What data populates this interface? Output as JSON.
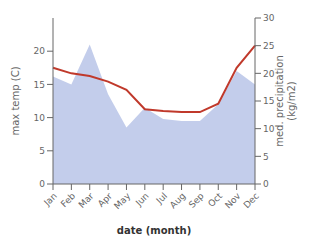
{
  "chart_data": {
    "type": "line",
    "categories": [
      "Jan",
      "Feb",
      "Mar",
      "Apr",
      "May",
      "Jun",
      "Jul",
      "Aug",
      "Sep",
      "Oct",
      "Nov",
      "Dec"
    ],
    "xlabel": "date (month)",
    "ylabel": "max temp (C)",
    "y2label": "med. precipitation\n(kg/m2)",
    "series": [
      {
        "type": "area",
        "color": "#b8c4e8",
        "values": [
          16.2,
          15.0,
          21.0,
          13.5,
          8.5,
          11.5,
          9.8,
          9.5,
          9.5,
          12.0,
          17.0,
          15.0
        ]
      },
      {
        "type": "line",
        "color": "#c0392b",
        "axis": "y2",
        "values": [
          21.0,
          20.0,
          19.5,
          18.5,
          17.0,
          13.5,
          13.2,
          13.0,
          13.0,
          14.5,
          21.0,
          25.0
        ]
      }
    ],
    "ylim": [
      0,
      25
    ],
    "yticks": [
      0,
      5,
      10,
      15,
      20
    ],
    "y2lim": [
      0,
      30
    ],
    "y2ticks": [
      0,
      5,
      10,
      15,
      20,
      25,
      30
    ],
    "grid": false
  }
}
